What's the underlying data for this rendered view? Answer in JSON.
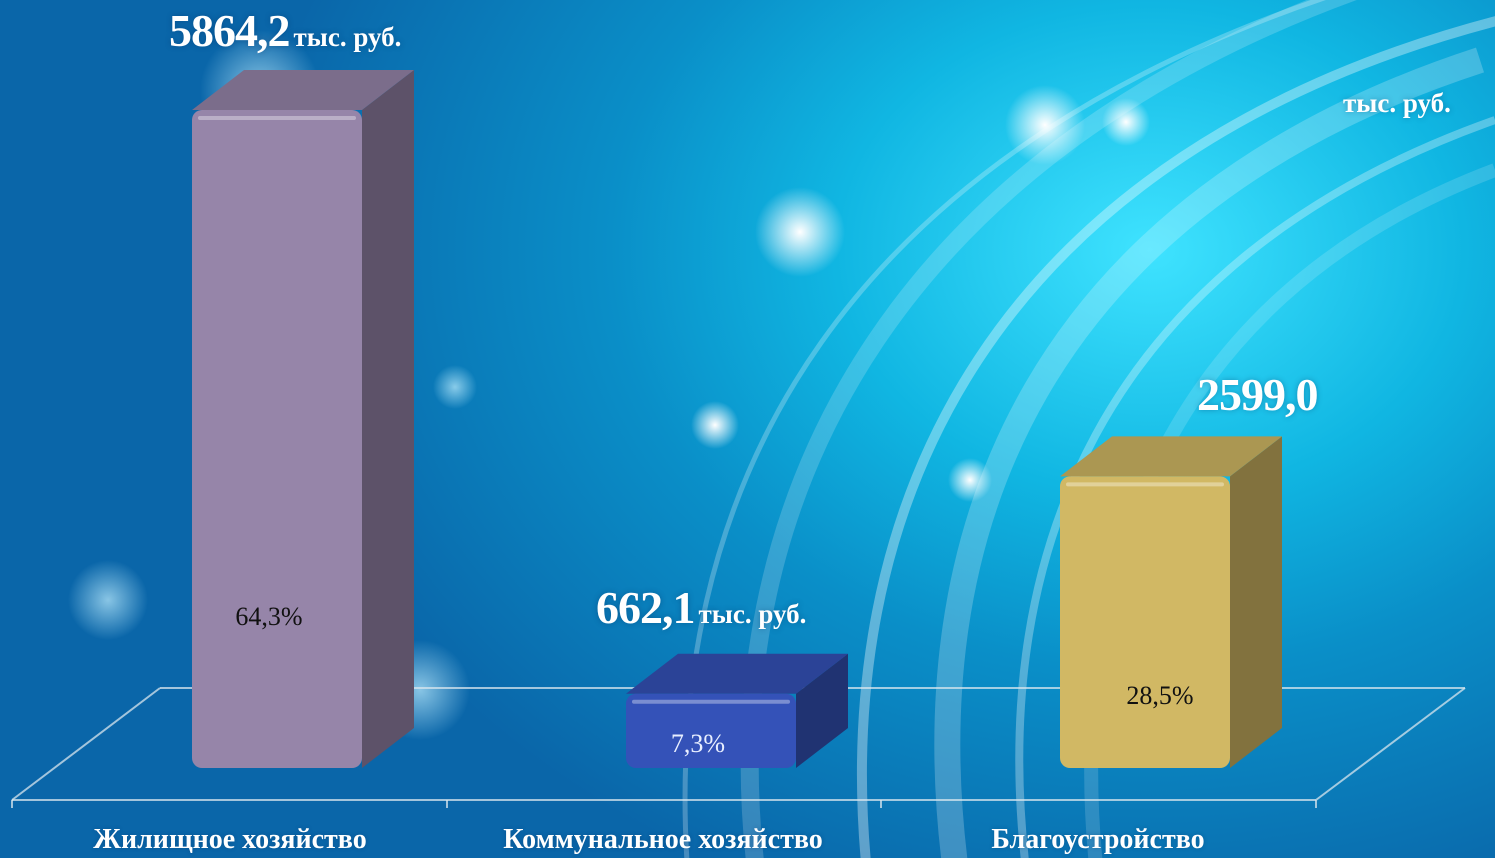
{
  "chart_data": {
    "type": "bar",
    "categories": [
      "Жилищное хозяйство",
      "Коммунальное хозяйство",
      "Благоустройство"
    ],
    "values": [
      5864.2,
      662.1,
      2599.0
    ],
    "value_labels": [
      "5864,2",
      "662,1",
      "2599,0"
    ],
    "unit_labels": [
      "тыс. руб.",
      "тыс. руб.",
      "тыс. руб."
    ],
    "percent_labels": [
      "64,3%",
      "7,3%",
      "28,5%"
    ],
    "colors": [
      "#9685a9",
      "#3452b8",
      "#d1b864"
    ],
    "ylim": [
      0,
      5864.2
    ]
  }
}
